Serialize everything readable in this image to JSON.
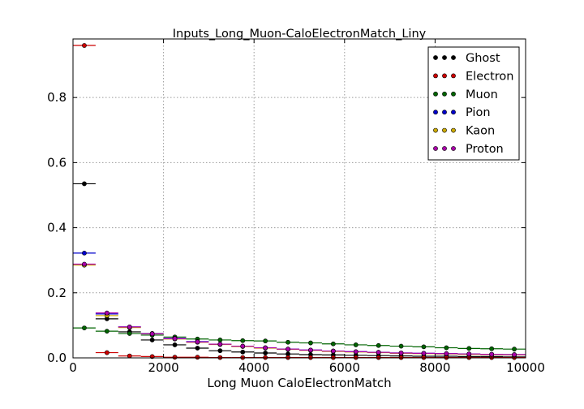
{
  "chart_data": {
    "type": "scatter",
    "title": "Inputs_Long_Muon-CaloElectronMatch_Liny",
    "xlabel": "Long Muon CaloElectronMatch",
    "ylabel": "",
    "xlim": [
      0,
      10000
    ],
    "ylim": [
      0,
      0.98
    ],
    "grid": true,
    "legend_position": "top-right",
    "bin_edges": [
      0,
      500,
      1000,
      1500,
      2000,
      2500,
      3000,
      3500,
      4000,
      4500,
      5000,
      5500,
      6000,
      6500,
      7000,
      7500,
      8000,
      8500,
      9000,
      9500,
      10000
    ],
    "x_ticks": [
      0,
      2000,
      4000,
      6000,
      8000,
      10000
    ],
    "x_tick_labels": [
      "0",
      "2000",
      "4000",
      "6000",
      "8000",
      "10000"
    ],
    "y_ticks": [
      0,
      0.2,
      0.4,
      0.6,
      0.8
    ],
    "y_tick_labels": [
      "0.0",
      "0.2",
      "0.4",
      "0.6",
      "0.8"
    ],
    "series": [
      {
        "name": "Ghost",
        "color": "#000000",
        "values": [
          0.535,
          0.12,
          0.08,
          0.055,
          0.04,
          0.03,
          0.022,
          0.018,
          0.015,
          0.012,
          0.01,
          0.009,
          0.008,
          0.007,
          0.006,
          0.005,
          0.005,
          0.004,
          0.004,
          0.003
        ]
      },
      {
        "name": "Electron",
        "color": "#cc0000",
        "values": [
          0.96,
          0.016,
          0.006,
          0.004,
          0.002,
          0.002,
          0.001,
          0.001,
          0.001,
          0.001,
          0.001,
          0.001,
          0.001,
          0.001,
          0.001,
          0.001,
          0.001,
          0.001,
          0.001,
          0.001
        ]
      },
      {
        "name": "Muon",
        "color": "#006400",
        "values": [
          0.092,
          0.082,
          0.075,
          0.07,
          0.064,
          0.058,
          0.055,
          0.053,
          0.052,
          0.048,
          0.046,
          0.043,
          0.04,
          0.038,
          0.036,
          0.034,
          0.031,
          0.029,
          0.028,
          0.027
        ]
      },
      {
        "name": "Pion",
        "color": "#0000cc",
        "values": [
          0.322,
          0.135,
          0.095,
          0.075,
          0.06,
          0.05,
          0.042,
          0.036,
          0.031,
          0.027,
          0.024,
          0.021,
          0.019,
          0.017,
          0.015,
          0.014,
          0.013,
          0.012,
          0.011,
          0.01
        ]
      },
      {
        "name": "Kaon",
        "color": "#ccaa00",
        "values": [
          0.285,
          0.13,
          0.093,
          0.074,
          0.058,
          0.048,
          0.041,
          0.035,
          0.03,
          0.026,
          0.023,
          0.02,
          0.018,
          0.016,
          0.014,
          0.013,
          0.012,
          0.011,
          0.01,
          0.009
        ]
      },
      {
        "name": "Proton",
        "color": "#aa00aa",
        "values": [
          0.288,
          0.138,
          0.095,
          0.074,
          0.059,
          0.049,
          0.042,
          0.036,
          0.031,
          0.027,
          0.024,
          0.021,
          0.019,
          0.017,
          0.015,
          0.014,
          0.013,
          0.012,
          0.011,
          0.01
        ]
      }
    ]
  }
}
